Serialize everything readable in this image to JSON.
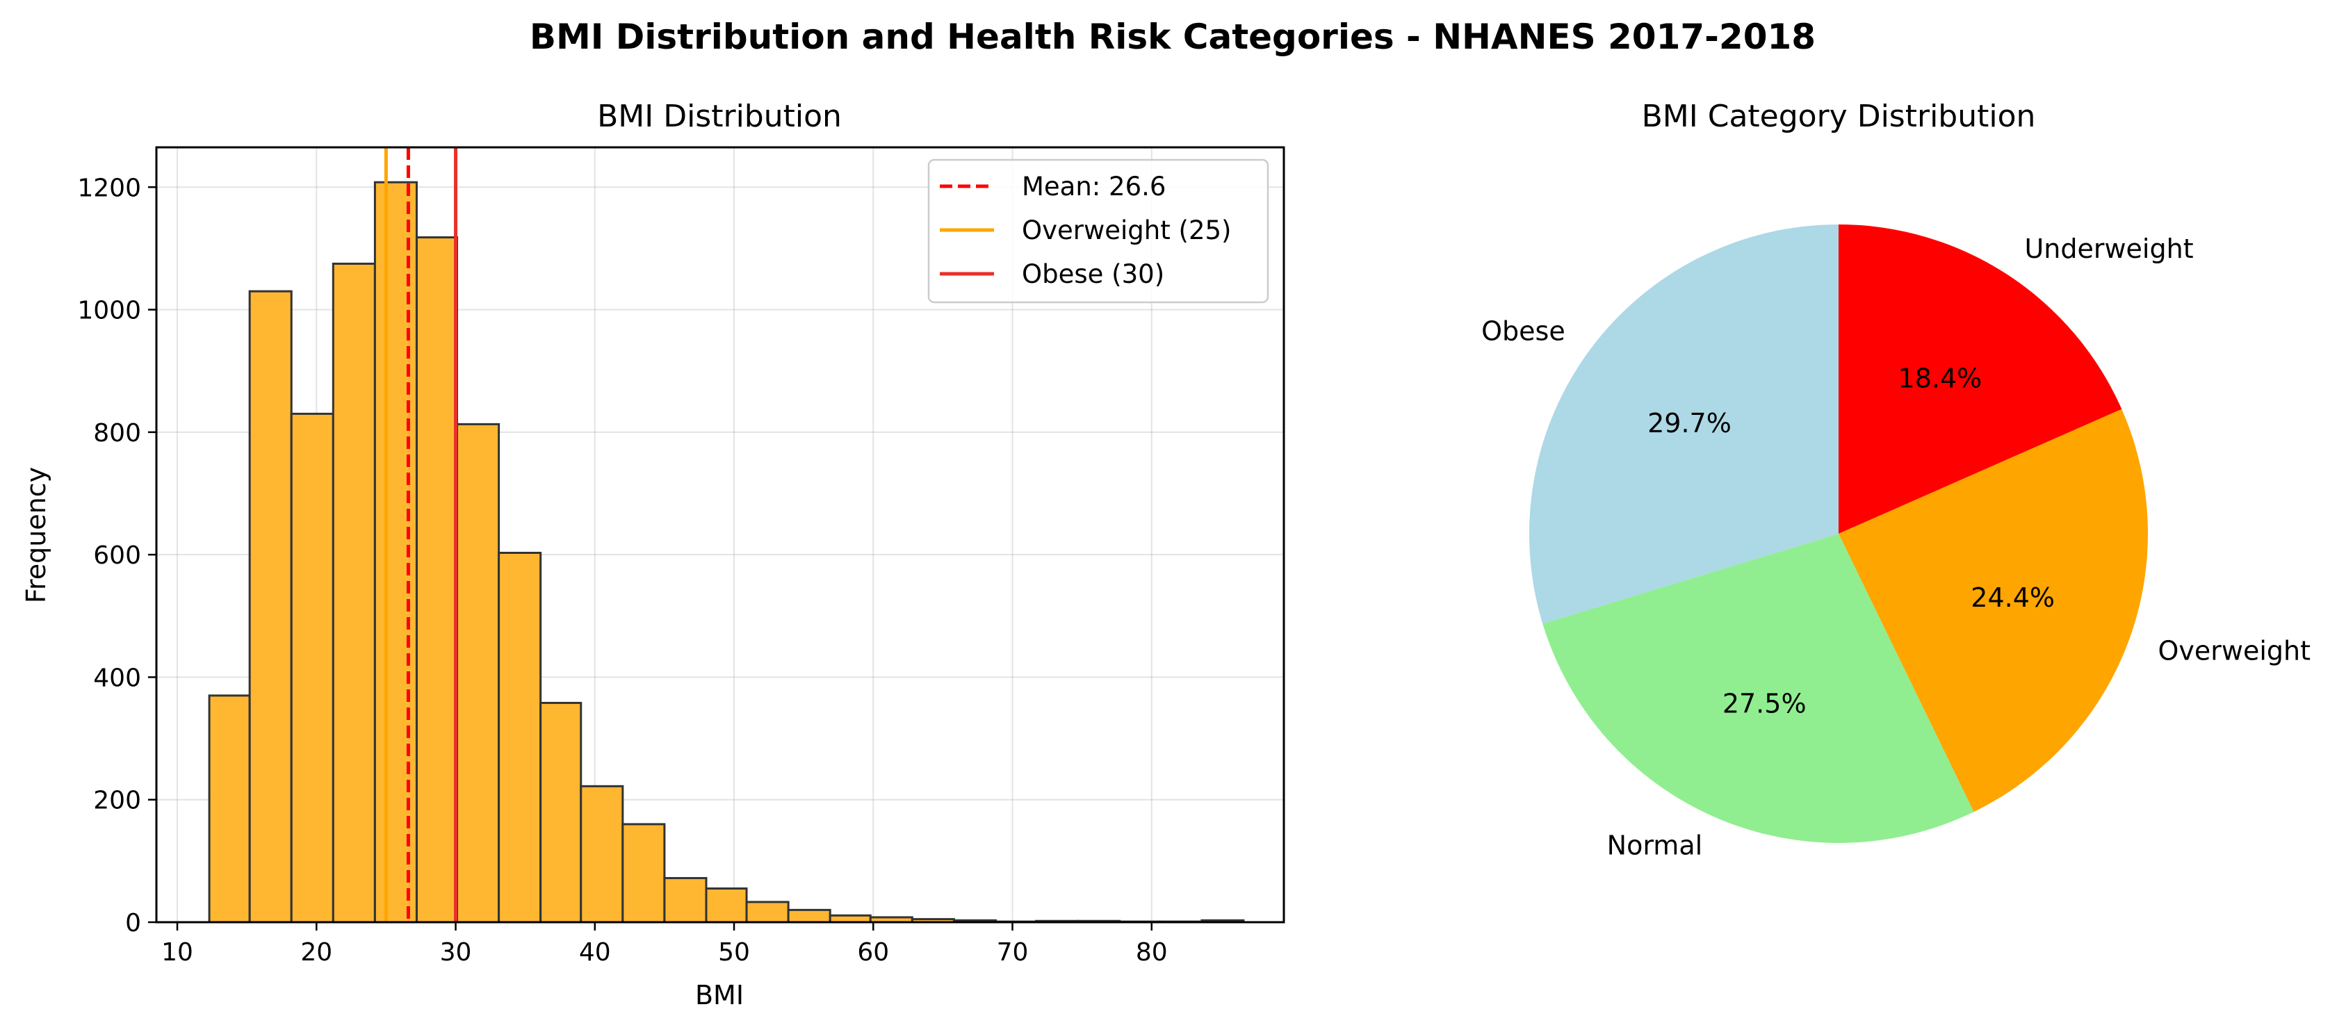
{
  "figure": {
    "title": "BMI Distribution and Health Risk Categories - NHANES 2017-2018"
  },
  "chart_data": [
    {
      "type": "bar",
      "subtype": "histogram",
      "title": "BMI Distribution",
      "xlabel": "BMI",
      "ylabel": "Frequency",
      "xlim": [
        8.5,
        89.5
      ],
      "ylim": [
        0,
        1265
      ],
      "xticks": [
        10,
        20,
        30,
        40,
        50,
        60,
        70,
        80
      ],
      "yticks": [
        0,
        200,
        400,
        600,
        800,
        1000,
        1200
      ],
      "grid": true,
      "legend_position": "top-right",
      "bar_color": "#FFB732",
      "bar_edge_color": "#333333",
      "bins": [
        {
          "x0": 12.3,
          "x1": 15.2,
          "count": 370
        },
        {
          "x0": 15.2,
          "x1": 18.2,
          "count": 1030
        },
        {
          "x0": 18.2,
          "x1": 21.2,
          "count": 830
        },
        {
          "x0": 21.2,
          "x1": 24.2,
          "count": 1075
        },
        {
          "x0": 24.2,
          "x1": 27.2,
          "count": 1208
        },
        {
          "x0": 27.2,
          "x1": 30.1,
          "count": 1118
        },
        {
          "x0": 30.1,
          "x1": 33.1,
          "count": 813
        },
        {
          "x0": 33.1,
          "x1": 36.1,
          "count": 603
        },
        {
          "x0": 36.1,
          "x1": 39.0,
          "count": 358
        },
        {
          "x0": 39.0,
          "x1": 42.0,
          "count": 222
        },
        {
          "x0": 42.0,
          "x1": 45.0,
          "count": 160
        },
        {
          "x0": 45.0,
          "x1": 48.0,
          "count": 72
        },
        {
          "x0": 48.0,
          "x1": 50.9,
          "count": 55
        },
        {
          "x0": 50.9,
          "x1": 53.9,
          "count": 33
        },
        {
          "x0": 53.9,
          "x1": 56.9,
          "count": 20
        },
        {
          "x0": 56.9,
          "x1": 59.8,
          "count": 11
        },
        {
          "x0": 59.8,
          "x1": 62.8,
          "count": 8
        },
        {
          "x0": 62.8,
          "x1": 65.8,
          "count": 5
        },
        {
          "x0": 65.8,
          "x1": 68.8,
          "count": 3
        },
        {
          "x0": 68.8,
          "x1": 71.7,
          "count": 1
        },
        {
          "x0": 71.7,
          "x1": 74.7,
          "count": 2
        },
        {
          "x0": 74.7,
          "x1": 77.7,
          "count": 2
        },
        {
          "x0": 77.7,
          "x1": 80.6,
          "count": 1
        },
        {
          "x0": 80.6,
          "x1": 83.6,
          "count": 1
        },
        {
          "x0": 83.6,
          "x1": 86.6,
          "count": 3
        }
      ],
      "reference_lines": [
        {
          "x": 26.6,
          "label": "Mean: 26.6",
          "color": "#FF0000",
          "style": "dashed"
        },
        {
          "x": 25,
          "label": "Overweight (25)",
          "color": "#FFA500",
          "style": "solid"
        },
        {
          "x": 30,
          "label": "Obese (30)",
          "color": "#E8302A",
          "style": "solid"
        }
      ]
    },
    {
      "type": "pie",
      "title": "BMI Category Distribution",
      "start_angle_deg": 90,
      "direction": "clockwise",
      "slices": [
        {
          "label": "Underweight",
          "value": 18.4,
          "pct_label": "18.4%",
          "color": "#FF0000"
        },
        {
          "label": "Overweight",
          "value": 24.4,
          "pct_label": "24.4%",
          "color": "#FFA500"
        },
        {
          "label": "Normal",
          "value": 27.5,
          "pct_label": "27.5%",
          "color": "#90EE90"
        },
        {
          "label": "Obese",
          "value": 29.7,
          "pct_label": "29.7%",
          "color": "#ADD8E6"
        }
      ]
    }
  ]
}
